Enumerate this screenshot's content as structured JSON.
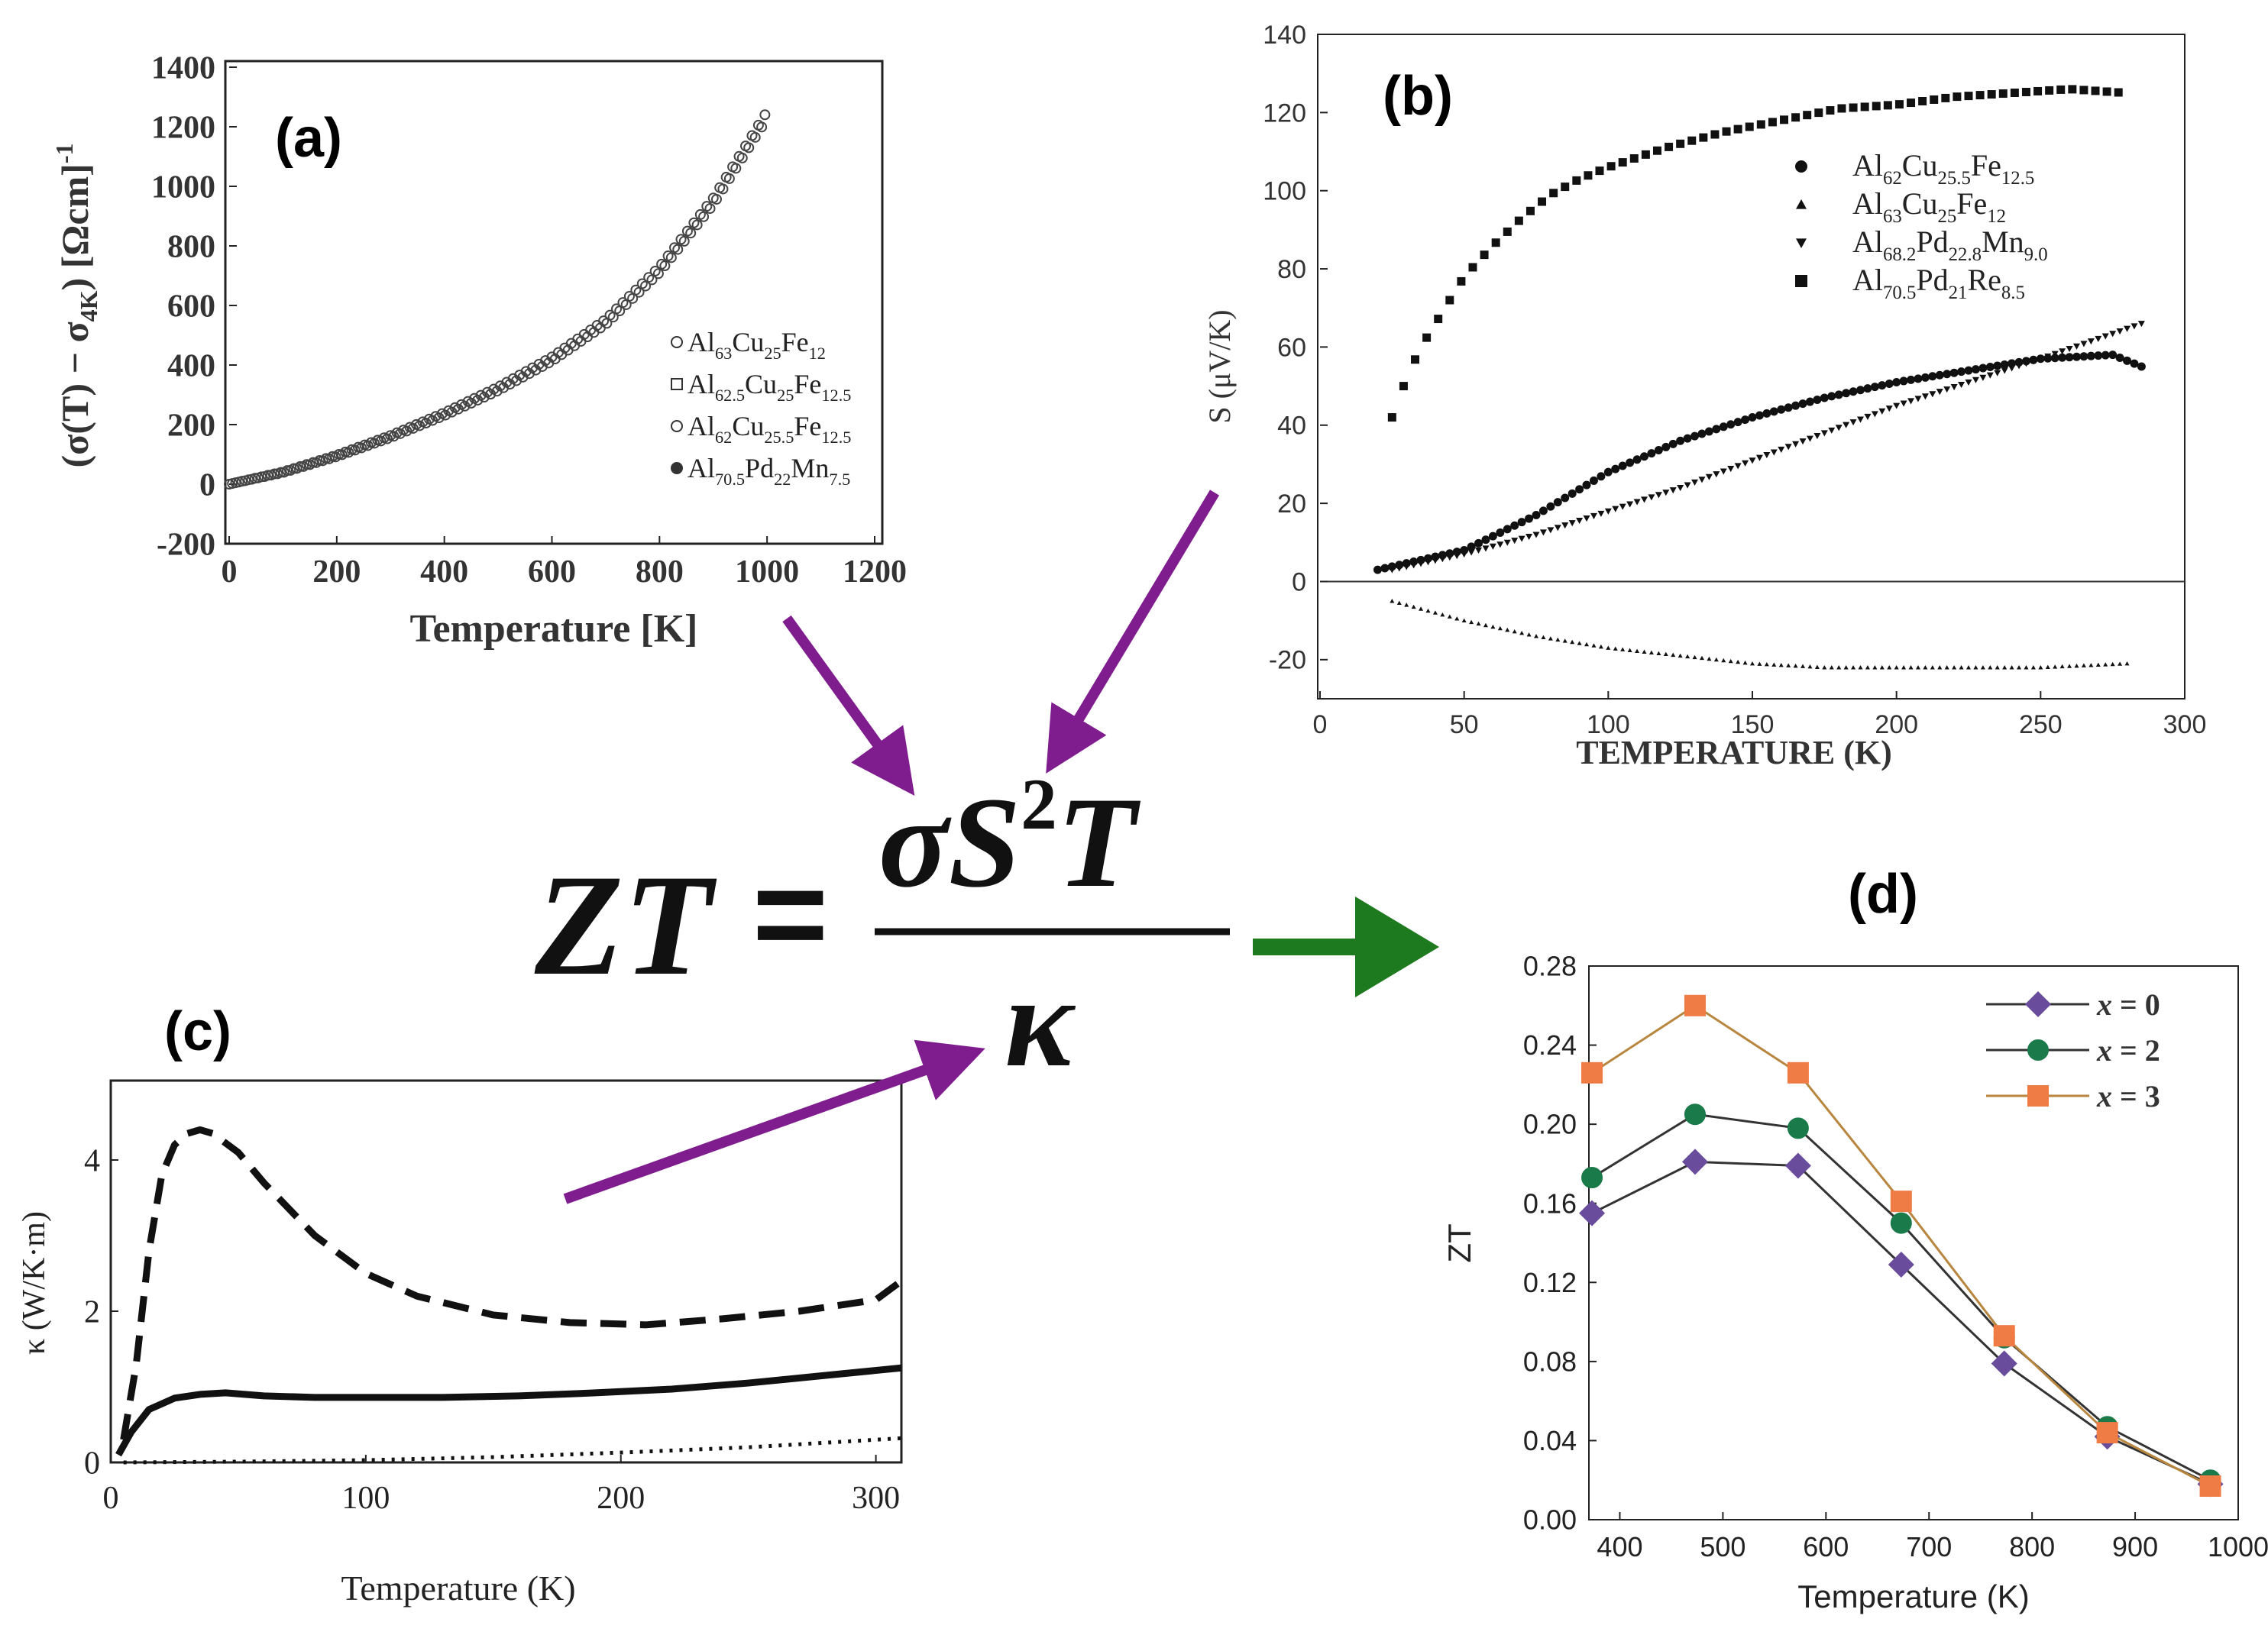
{
  "colors": {
    "arrow_purple": "#7f1d8f",
    "arrow_green": "#1e7a1e",
    "x0": "#6a4c9c",
    "x2": "#1b7a4a",
    "x3": "#ef7b45",
    "ink": "#111111"
  },
  "formula": {
    "lhs": "ZT",
    "equals": "=",
    "numerator_sigma": "σ",
    "numerator_S": "S",
    "numerator_exp": "2",
    "numerator_T": "T",
    "denominator": "κ"
  },
  "chart_data": [
    {
      "id": "a",
      "panel_label": "(a)",
      "type": "scatter",
      "title": "",
      "xlabel": "Temperature [K]",
      "ylabel_parts": {
        "a": "(σ(T) − σ",
        "sub": "4K",
        "b": ") [Ωcm]",
        "sup": "-1"
      },
      "xlim": [
        0,
        1200
      ],
      "ylim": [
        -200,
        1400
      ],
      "xticks": [
        "0",
        "200",
        "400",
        "600",
        "800",
        "1000",
        "1200"
      ],
      "yticks": [
        "-200",
        "0",
        "200",
        "400",
        "600",
        "800",
        "1000",
        "1200",
        "1400"
      ],
      "legend": [
        {
          "marker": "circle-open",
          "base": "Al",
          "parts": [
            [
              "63",
              "Cu"
            ],
            [
              "25",
              "Fe"
            ],
            [
              "12",
              ""
            ]
          ]
        },
        {
          "marker": "square-open",
          "base": "Al",
          "parts": [
            [
              "62.5",
              "Cu"
            ],
            [
              "25",
              "Fe"
            ],
            [
              "12.5",
              ""
            ]
          ]
        },
        {
          "marker": "circle-open",
          "base": "Al",
          "parts": [
            [
              "62",
              "Cu"
            ],
            [
              "25.5",
              "Fe"
            ],
            [
              "12.5",
              ""
            ]
          ]
        },
        {
          "marker": "circle-filled",
          "base": "Al",
          "parts": [
            [
              "70.5",
              "Pd"
            ],
            [
              "22",
              "Mn"
            ],
            [
              "7.5",
              ""
            ]
          ]
        }
      ],
      "series": [
        {
          "name": "Al63Cu25Fe12 / Al62.5Cu25Fe12.5 / Al62Cu25.5Fe12.5 / Al70.5Pd22Mn7.5 (overlapping)",
          "x": [
            0,
            100,
            200,
            300,
            400,
            500,
            600,
            700,
            800,
            900,
            1000
          ],
          "y": [
            0,
            40,
            95,
            160,
            235,
            320,
            420,
            545,
            720,
            950,
            1240
          ]
        }
      ]
    },
    {
      "id": "b",
      "panel_label": "(b)",
      "type": "scatter",
      "xlabel": "TEMPERATURE (K)",
      "ylabel": "S (μV/K)",
      "xlim": [
        0,
        300
      ],
      "ylim": [
        -30,
        140
      ],
      "xticks": [
        "0",
        "50",
        "100",
        "150",
        "200",
        "250",
        "300"
      ],
      "yticks": [
        "-20",
        "0",
        "20",
        "40",
        "60",
        "80",
        "100",
        "120",
        "140"
      ],
      "legend": [
        {
          "marker": "circle-filled",
          "base": "Al",
          "parts": [
            [
              "62",
              "Cu"
            ],
            [
              "25.5",
              "Fe"
            ],
            [
              "12.5",
              ""
            ]
          ]
        },
        {
          "marker": "triangle-up",
          "base": "Al",
          "parts": [
            [
              "63",
              "Cu"
            ],
            [
              "25",
              "Fe"
            ],
            [
              "12",
              ""
            ]
          ]
        },
        {
          "marker": "triangle-down",
          "base": "Al",
          "parts": [
            [
              "68.2",
              "Pd"
            ],
            [
              "22.8",
              "Mn"
            ],
            [
              "9.0",
              ""
            ]
          ]
        },
        {
          "marker": "square-filled",
          "base": "Al",
          "parts": [
            [
              "70.5",
              "Pd"
            ],
            [
              "21",
              "Re"
            ],
            [
              "8.5",
              ""
            ]
          ]
        }
      ],
      "series": [
        {
          "name": "Al62Cu25.5Fe12.5",
          "marker": "circle-filled",
          "x": [
            20,
            50,
            75,
            100,
            125,
            150,
            175,
            200,
            225,
            250,
            275,
            285
          ],
          "y": [
            3,
            8,
            17,
            28,
            36,
            42,
            47,
            51,
            54,
            57,
            58,
            55
          ]
        },
        {
          "name": "Al63Cu25Fe12",
          "marker": "triangle-up",
          "x": [
            25,
            50,
            75,
            100,
            125,
            150,
            175,
            200,
            225,
            250,
            280
          ],
          "y": [
            -5,
            -10,
            -14,
            -17,
            -19,
            -21,
            -22,
            -22,
            -22,
            -22,
            -21
          ]
        },
        {
          "name": "Al68.2Pd22.8Mn9.0",
          "marker": "triangle-down",
          "x": [
            25,
            50,
            75,
            100,
            125,
            150,
            175,
            200,
            225,
            250,
            285
          ],
          "y": [
            3,
            7,
            12,
            18,
            24,
            31,
            38,
            45,
            51,
            57,
            66
          ]
        },
        {
          "name": "Al70.5Pd21Re8.5",
          "marker": "square-filled",
          "x": [
            25,
            30,
            35,
            40,
            50,
            60,
            70,
            80,
            90,
            100,
            120,
            140,
            160,
            180,
            200,
            220,
            240,
            260,
            280
          ],
          "y": [
            42,
            52,
            60,
            66,
            78,
            86,
            93,
            99,
            103,
            106,
            111,
            115,
            118,
            121,
            122,
            124,
            125,
            126,
            125
          ]
        }
      ]
    },
    {
      "id": "c",
      "panel_label": "(c)",
      "type": "line",
      "xlabel": "Temperature (K)",
      "ylabel": "κ (W/K·m)",
      "xlim": [
        0,
        310
      ],
      "ylim": [
        0,
        5
      ],
      "xticks": [
        "0",
        "100",
        "200",
        "300"
      ],
      "yticks": [
        "0",
        "2",
        "4"
      ],
      "series": [
        {
          "name": "dashed",
          "style": "dashed",
          "x": [
            5,
            10,
            15,
            20,
            25,
            30,
            35,
            40,
            50,
            60,
            80,
            100,
            120,
            150,
            180,
            210,
            240,
            270,
            300,
            310
          ],
          "y": [
            0.3,
            1.3,
            2.8,
            3.8,
            4.2,
            4.35,
            4.4,
            4.35,
            4.1,
            3.7,
            3.0,
            2.5,
            2.2,
            1.95,
            1.85,
            1.82,
            1.9,
            2.0,
            2.15,
            2.4
          ]
        },
        {
          "name": "solid",
          "style": "solid",
          "x": [
            3,
            8,
            15,
            25,
            35,
            45,
            60,
            80,
            100,
            130,
            160,
            190,
            220,
            250,
            280,
            310
          ],
          "y": [
            0.1,
            0.4,
            0.7,
            0.85,
            0.9,
            0.92,
            0.88,
            0.86,
            0.86,
            0.86,
            0.88,
            0.92,
            0.97,
            1.05,
            1.15,
            1.25
          ]
        },
        {
          "name": "dotted",
          "style": "dotted",
          "x": [
            5,
            50,
            100,
            150,
            200,
            250,
            310
          ],
          "y": [
            0.0,
            0.01,
            0.03,
            0.07,
            0.13,
            0.2,
            0.32
          ]
        }
      ]
    },
    {
      "id": "d",
      "panel_label": "(d)",
      "type": "line",
      "xlabel": "Temperature (K)",
      "ylabel": "ZT",
      "xlim": [
        370,
        1000
      ],
      "ylim": [
        0.0,
        0.28
      ],
      "xticks": [
        "400",
        "500",
        "600",
        "700",
        "800",
        "900",
        "1000"
      ],
      "yticks": [
        "0.00",
        "0.04",
        "0.08",
        "0.12",
        "0.16",
        "0.20",
        "0.24",
        "0.28"
      ],
      "legend_position": "top-right",
      "series": [
        {
          "name": "x = 0",
          "label_var": "x",
          "label_rest": " = 0",
          "marker": "diamond",
          "color": "#6a4c9c",
          "x": [
            373,
            473,
            573,
            673,
            773,
            873,
            973
          ],
          "y": [
            0.155,
            0.181,
            0.179,
            0.129,
            0.079,
            0.042,
            0.018
          ]
        },
        {
          "name": "x = 2",
          "label_var": "x",
          "label_rest": " = 2",
          "marker": "circle",
          "color": "#1b7a4a",
          "x": [
            373,
            473,
            573,
            673,
            773,
            873,
            973
          ],
          "y": [
            0.173,
            0.205,
            0.198,
            0.15,
            0.092,
            0.047,
            0.02
          ]
        },
        {
          "name": "x = 3",
          "label_var": "x",
          "label_rest": " = 3",
          "marker": "square",
          "color": "#ef7b45",
          "x": [
            373,
            473,
            573,
            673,
            773,
            873,
            973
          ],
          "y": [
            0.226,
            0.26,
            0.226,
            0.161,
            0.093,
            0.044,
            0.017
          ]
        }
      ]
    }
  ]
}
